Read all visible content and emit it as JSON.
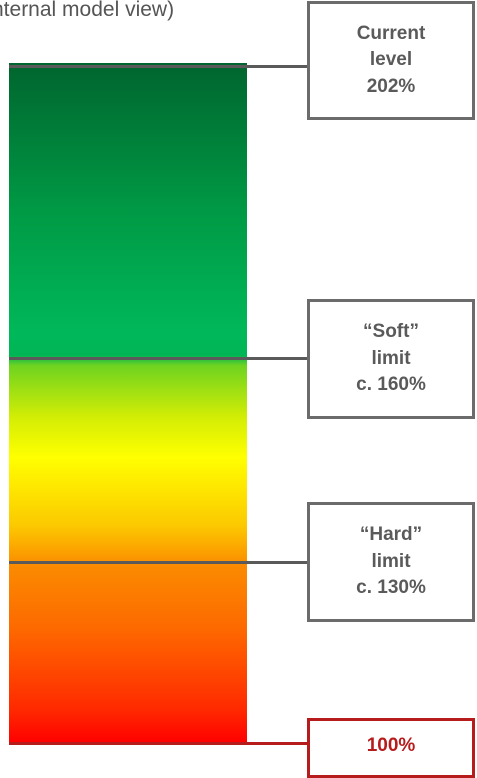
{
  "header": {
    "text": "nternal model view)"
  },
  "levels": {
    "current": {
      "line1": "Current",
      "line2": "level",
      "line3": "202%"
    },
    "soft": {
      "line1": "“Soft”",
      "line2": "limit",
      "line3": "c. 160%"
    },
    "hard": {
      "line1": "“Hard”",
      "line2": "limit",
      "line3": "c. 130%"
    },
    "base": {
      "label": "100%"
    }
  },
  "colors": {
    "accent_red": "#b71c1c",
    "callout_border": "#6b6b6b",
    "text_gray": "#5a5a5a"
  }
}
